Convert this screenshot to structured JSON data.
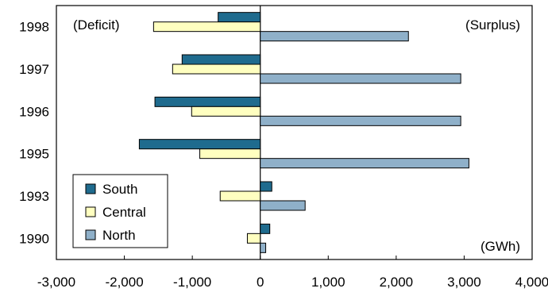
{
  "chart_data": {
    "type": "bar",
    "orientation": "horizontal",
    "categories": [
      "1998",
      "1997",
      "1996",
      "1995",
      "1993",
      "1990"
    ],
    "series": [
      {
        "name": "South",
        "color": "#1f6b8e",
        "values": [
          -620,
          -1150,
          -1550,
          -1780,
          170,
          140
        ]
      },
      {
        "name": "Central",
        "color": "#ffffc0",
        "values": [
          -1570,
          -1290,
          -1010,
          -890,
          -590,
          -190
        ]
      },
      {
        "name": "North",
        "color": "#8fb0c9",
        "values": [
          2180,
          2950,
          2950,
          3070,
          660,
          80
        ]
      }
    ],
    "x_ticks": [
      "-3,000",
      "-2,000",
      "-1,000",
      "0",
      "1,000",
      "2,000",
      "3,000",
      "4,000"
    ],
    "x_tick_values": [
      -3000,
      -2000,
      -1000,
      0,
      1000,
      2000,
      3000,
      4000
    ],
    "xlim": [
      -3000,
      4000
    ],
    "annotations": {
      "deficit": "(Deficit)",
      "surplus": "(Surplus)",
      "unit": "(GWh)"
    },
    "legend_position": "bottom-left",
    "grid": false
  }
}
